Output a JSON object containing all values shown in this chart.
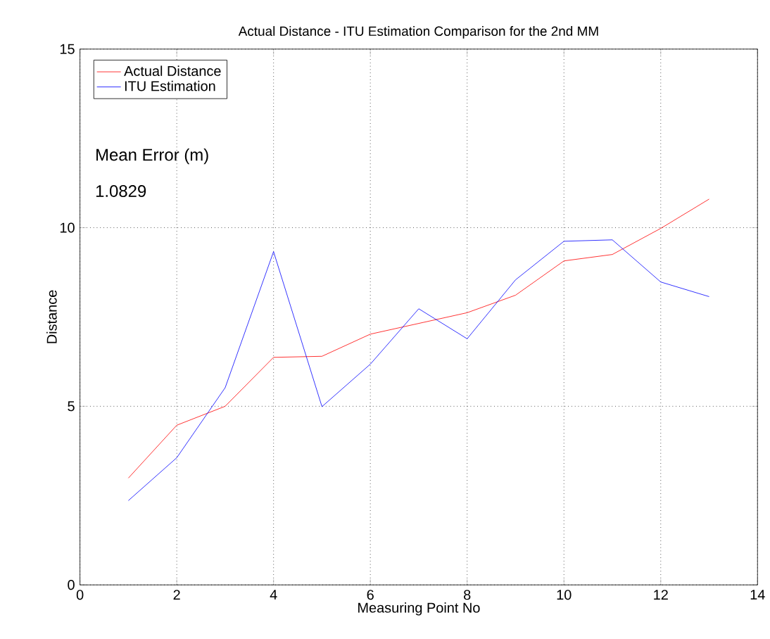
{
  "chart_data": {
    "type": "line",
    "title": "Actual Distance - ITU Estimation Comparison for the 2nd MM",
    "xlabel": "Measuring Point No",
    "ylabel": "Distance",
    "x": [
      1,
      2,
      3,
      4,
      5,
      6,
      7,
      8,
      9,
      10,
      11,
      12,
      13
    ],
    "series": [
      {
        "name": "Actual Distance",
        "color": "#ff0000",
        "values": [
          2.99,
          4.47,
          5.0,
          6.37,
          6.4,
          7.02,
          7.32,
          7.62,
          8.11,
          9.07,
          9.25,
          9.98,
          10.8
        ]
      },
      {
        "name": "ITU Estimation",
        "color": "#0000ff",
        "values": [
          2.36,
          3.56,
          5.52,
          9.33,
          4.99,
          6.18,
          7.73,
          6.89,
          8.54,
          9.62,
          9.66,
          8.48,
          8.07
        ]
      }
    ],
    "annotations": [
      "Mean Error (m)",
      "1.0829"
    ],
    "xlim": [
      0,
      14
    ],
    "ylim": [
      0,
      15
    ],
    "xticks": [
      0,
      2,
      4,
      6,
      8,
      10,
      12,
      14
    ],
    "yticks": [
      0,
      5,
      10,
      15
    ],
    "grid": true,
    "legend": "top left",
    "line_style": "solid",
    "marker": "none"
  }
}
